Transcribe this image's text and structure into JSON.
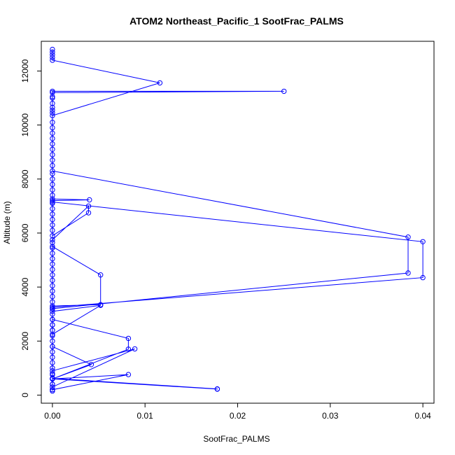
{
  "chart_data": {
    "type": "line",
    "title": "ATOM2 Northeast_Pacific_1 SootFrac_PALMS",
    "xlabel": "SootFrac_PALMS",
    "ylabel": "Altitude (m)",
    "xlim": [
      -0.0012,
      0.0412
    ],
    "ylim": [
      -300,
      13100
    ],
    "xticks": [
      0.0,
      0.01,
      0.02,
      0.03,
      0.04
    ],
    "xtick_labels": [
      "0.00",
      "0.01",
      "0.02",
      "0.03",
      "0.04"
    ],
    "yticks": [
      0,
      2000,
      4000,
      6000,
      8000,
      10000,
      12000
    ],
    "ytick_labels": [
      "0",
      "2000",
      "4000",
      "6000",
      "8000",
      "10000",
      "12000"
    ],
    "grid": false,
    "series": [
      {
        "color": "#0000ff",
        "marker": "open-circle",
        "points": [
          [
            0.0,
            12800
          ],
          [
            0.0,
            12700
          ],
          [
            0.0,
            12600
          ],
          [
            0.0,
            12500
          ],
          [
            0.0,
            12400
          ],
          [
            0.0116,
            11560
          ],
          [
            0.0,
            10350
          ],
          [
            0.0,
            10450
          ],
          [
            0.0,
            10550
          ],
          [
            0.0,
            10650
          ],
          [
            0.0,
            10800
          ],
          [
            0.0,
            11000
          ],
          [
            0.0,
            11250
          ],
          [
            0.025,
            11250
          ],
          [
            0.0,
            11200
          ],
          [
            0.0,
            11050
          ],
          [
            0.0,
            10100
          ],
          [
            0.0,
            9900
          ],
          [
            0.0,
            9700
          ],
          [
            0.0,
            9500
          ],
          [
            0.0,
            9300
          ],
          [
            0.0,
            9100
          ],
          [
            0.0,
            8900
          ],
          [
            0.0,
            8700
          ],
          [
            0.0,
            8500
          ],
          [
            0.0,
            8300
          ],
          [
            0.0384,
            5850
          ],
          [
            0.0384,
            4520
          ],
          [
            0.0,
            3200
          ],
          [
            0.0,
            3100
          ],
          [
            0.0052,
            3320
          ],
          [
            0.0,
            2250
          ],
          [
            0.0,
            2400
          ],
          [
            0.0,
            2600
          ],
          [
            0.0,
            2800
          ],
          [
            0.0082,
            2100
          ],
          [
            0.0082,
            1700
          ],
          [
            0.0,
            600
          ],
          [
            0.0178,
            220
          ],
          [
            0.0178,
            230
          ],
          [
            0.0,
            620
          ],
          [
            0.0,
            400
          ],
          [
            0.0,
            200
          ],
          [
            0.0,
            150
          ],
          [
            0.0,
            200
          ],
          [
            0.0082,
            760
          ],
          [
            0.0,
            600
          ],
          [
            0.0,
            800
          ],
          [
            0.0,
            1000
          ],
          [
            0.0,
            1200
          ],
          [
            0.0,
            1400
          ],
          [
            0.0,
            1600
          ],
          [
            0.0,
            1800
          ],
          [
            0.0042,
            1130
          ],
          [
            0.0,
            600
          ],
          [
            0.0,
            750
          ],
          [
            0.0,
            900
          ],
          [
            0.0089,
            1710
          ],
          [
            0.0,
            300
          ],
          [
            0.0,
            400
          ],
          [
            0.0,
            600
          ],
          [
            0.0,
            1800
          ],
          [
            0.0,
            2000
          ],
          [
            0.0,
            2200
          ],
          [
            0.0,
            2400
          ],
          [
            0.0,
            2600
          ],
          [
            0.0,
            2800
          ],
          [
            0.0,
            3000
          ],
          [
            0.0,
            3250
          ],
          [
            0.04,
            4350
          ],
          [
            0.04,
            5680
          ],
          [
            0.0,
            7150
          ],
          [
            0.0,
            7200
          ],
          [
            0.004,
            7230
          ],
          [
            0.0,
            7260
          ],
          [
            0.0,
            7100
          ],
          [
            0.0,
            6900
          ],
          [
            0.0,
            6700
          ],
          [
            0.0,
            6500
          ],
          [
            0.0,
            6300
          ],
          [
            0.0,
            6100
          ],
          [
            0.0,
            5900
          ],
          [
            0.0039,
            6750
          ],
          [
            0.0039,
            7000
          ],
          [
            0.0,
            5750
          ],
          [
            0.0,
            5650
          ],
          [
            0.0,
            5500
          ],
          [
            0.0052,
            4450
          ],
          [
            0.0052,
            3350
          ],
          [
            0.0,
            3300
          ],
          [
            0.0,
            3200
          ],
          [
            0.0,
            3450
          ],
          [
            0.0,
            3650
          ],
          [
            0.0,
            3850
          ],
          [
            0.0,
            4050
          ],
          [
            0.0,
            4250
          ],
          [
            0.0,
            4450
          ],
          [
            0.0,
            4650
          ],
          [
            0.0,
            4850
          ],
          [
            0.0,
            5050
          ],
          [
            0.0,
            5250
          ],
          [
            0.0,
            5450
          ],
          [
            0.0,
            7400
          ],
          [
            0.0,
            7600
          ],
          [
            0.0,
            7800
          ],
          [
            0.0,
            8000
          ],
          [
            0.0,
            8200
          ]
        ]
      }
    ]
  }
}
